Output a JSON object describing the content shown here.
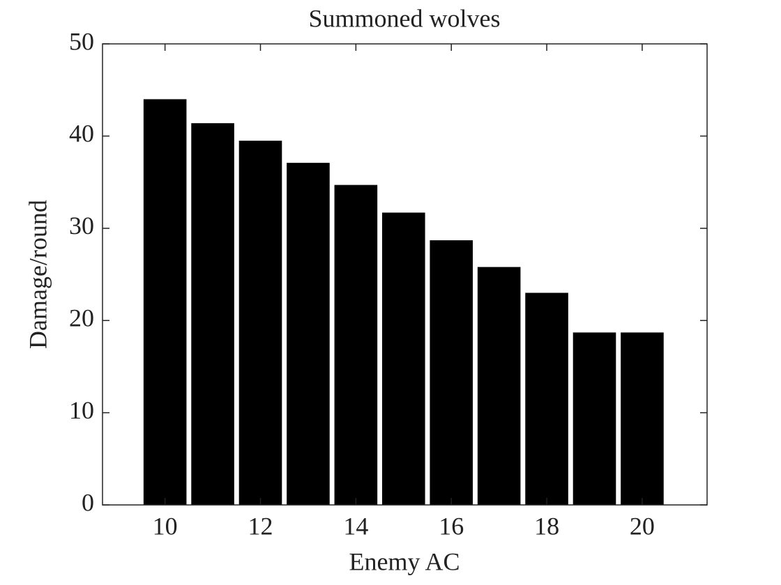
{
  "chart_data": {
    "type": "bar",
    "title": "Summoned wolves",
    "x_label": "Enemy AC",
    "y_label": "Damage/round",
    "x": [
      10,
      11,
      12,
      13,
      14,
      15,
      16,
      17,
      18,
      19,
      20
    ],
    "values": [
      44.0,
      41.4,
      39.5,
      37.1,
      34.7,
      31.7,
      28.7,
      25.8,
      23.0,
      18.7,
      18.7
    ],
    "color": "#000000",
    "xlim": [
      8.69,
      21.36
    ],
    "xticks": [
      10,
      12,
      14,
      16,
      18,
      20
    ],
    "ylim": [
      0,
      50
    ],
    "yticks": [
      0,
      10,
      20,
      30,
      40,
      50
    ],
    "grid": false
  }
}
